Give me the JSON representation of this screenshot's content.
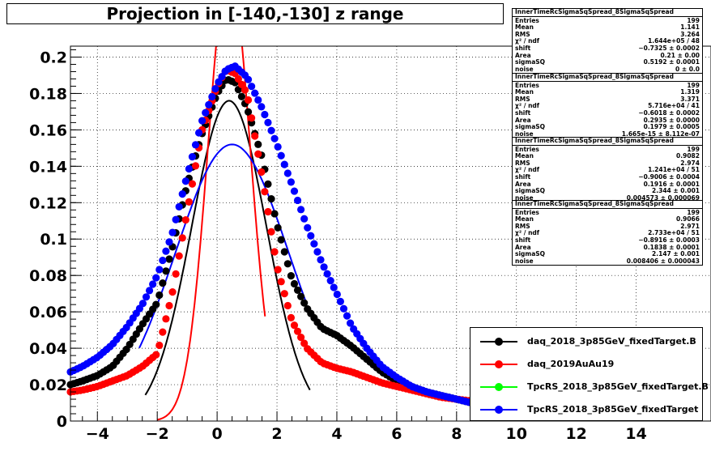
{
  "title": "Projection in [-140,-130] z range",
  "chart_data": {
    "type": "scatter",
    "title": "Projection in [-140,-130] z range",
    "xlabel": "",
    "ylabel": "",
    "xlim": [
      -4.9,
      16.5
    ],
    "ylim": [
      0,
      0.206
    ],
    "x_ticks": [
      -4,
      -2,
      0,
      2,
      4,
      6,
      8,
      10,
      12,
      14
    ],
    "y_ticks": [
      0,
      0.02,
      0.04,
      0.06,
      0.08,
      0.1,
      0.12,
      0.14,
      0.16,
      0.18,
      0.2
    ],
    "y_tick_labels": [
      "0",
      "0.02",
      "0.04",
      "0.06",
      "0.08",
      "0.1",
      "0.12",
      "0.14",
      "0.16",
      "0.18",
      "0.2"
    ],
    "grid": true,
    "legend_position": "bottom-right",
    "series": [
      {
        "name": "daq_2018_3p85GeV_fixedTarget.B",
        "color": "#000000",
        "points": [
          [
            -4.9,
            0.02
          ],
          [
            -4.5,
            0.022
          ],
          [
            -4,
            0.025
          ],
          [
            -3.5,
            0.03
          ],
          [
            -3,
            0.04
          ],
          [
            -2.5,
            0.053
          ],
          [
            -2,
            0.065
          ],
          [
            -1.5,
            0.095
          ],
          [
            -1,
            0.13
          ],
          [
            -0.5,
            0.158
          ],
          [
            0,
            0.18
          ],
          [
            0.3,
            0.188
          ],
          [
            0.6,
            0.186
          ],
          [
            1,
            0.172
          ],
          [
            1.5,
            0.145
          ],
          [
            2,
            0.108
          ],
          [
            2.5,
            0.078
          ],
          [
            3,
            0.062
          ],
          [
            3.5,
            0.051
          ],
          [
            4,
            0.047
          ],
          [
            4.5,
            0.041
          ],
          [
            5,
            0.034
          ],
          [
            5.5,
            0.027
          ],
          [
            6,
            0.022
          ],
          [
            6.5,
            0.019
          ],
          [
            7,
            0.016
          ],
          [
            7.5,
            0.014
          ],
          [
            8,
            0.012
          ],
          [
            8.5,
            0.01
          ],
          [
            9,
            0.008
          ]
        ],
        "fit": {
          "mean": 0.4,
          "amplitude": 0.176,
          "sigma": 1.25,
          "x_range": [
            -2.4,
            3.1
          ]
        }
      },
      {
        "name": "daq_2019AuAu19",
        "color": "#ff0000",
        "points": [
          [
            -4.9,
            0.016
          ],
          [
            -4.5,
            0.017
          ],
          [
            -4,
            0.019
          ],
          [
            -3.5,
            0.022
          ],
          [
            -3,
            0.025
          ],
          [
            -2.5,
            0.03
          ],
          [
            -2,
            0.037
          ],
          [
            -1.5,
            0.07
          ],
          [
            -1,
            0.115
          ],
          [
            -0.5,
            0.16
          ],
          [
            0,
            0.184
          ],
          [
            0.3,
            0.193
          ],
          [
            0.6,
            0.191
          ],
          [
            1,
            0.18
          ],
          [
            1.5,
            0.135
          ],
          [
            2,
            0.085
          ],
          [
            2.5,
            0.055
          ],
          [
            3,
            0.04
          ],
          [
            3.5,
            0.032
          ],
          [
            4,
            0.029
          ],
          [
            4.5,
            0.027
          ],
          [
            5,
            0.024
          ],
          [
            5.5,
            0.021
          ],
          [
            6,
            0.019
          ],
          [
            6.5,
            0.017
          ],
          [
            7,
            0.015
          ],
          [
            7.5,
            0.013
          ],
          [
            8,
            0.012
          ],
          [
            8.5,
            0.011
          ],
          [
            9,
            0.01
          ]
        ],
        "fit": {
          "mean": 0.4,
          "amplitude": 0.25,
          "sigma": 0.7,
          "x_range": [
            -2.0,
            1.6
          ]
        }
      },
      {
        "name": "TpcRS_2018_3p85GeV_fixedTarget.B",
        "color": "#00ff00",
        "points": [],
        "fit": null
      },
      {
        "name": "TpcRS_2018_3p85GeV_fixedTarget",
        "color": "#0000ff",
        "points": [
          [
            -4.9,
            0.027
          ],
          [
            -4.5,
            0.03
          ],
          [
            -4,
            0.035
          ],
          [
            -3.5,
            0.042
          ],
          [
            -3,
            0.052
          ],
          [
            -2.5,
            0.064
          ],
          [
            -2,
            0.08
          ],
          [
            -1.5,
            0.103
          ],
          [
            -1,
            0.135
          ],
          [
            -0.5,
            0.165
          ],
          [
            0,
            0.185
          ],
          [
            0.3,
            0.193
          ],
          [
            0.6,
            0.195
          ],
          [
            1,
            0.189
          ],
          [
            1.5,
            0.172
          ],
          [
            2,
            0.152
          ],
          [
            2.5,
            0.13
          ],
          [
            3,
            0.107
          ],
          [
            3.5,
            0.087
          ],
          [
            4,
            0.07
          ],
          [
            4.5,
            0.052
          ],
          [
            5,
            0.04
          ],
          [
            5.5,
            0.03
          ],
          [
            6,
            0.024
          ],
          [
            6.5,
            0.019
          ],
          [
            7,
            0.016
          ],
          [
            7.5,
            0.014
          ],
          [
            8,
            0.012
          ],
          [
            8.5,
            0.01
          ],
          [
            9,
            0.008
          ]
        ],
        "fit": {
          "mean": 0.5,
          "amplitude": 0.152,
          "sigma": 1.9,
          "x_range": [
            -2.6,
            2.95
          ]
        }
      }
    ]
  },
  "stats_boxes": [
    {
      "header": "InnerTimeRcSigmaSqSpread_8SigmaSqSpread",
      "rows": [
        {
          "label": "Entries",
          "value": "199"
        },
        {
          "label": "Mean",
          "value": "1.141"
        },
        {
          "label": "RMS",
          "value": "3.264"
        },
        {
          "label": "χ² / ndf",
          "value": "1.644e+05 / 48"
        },
        {
          "label": "shift",
          "value": "−0.7325 ± 0.0002"
        },
        {
          "label": "Area",
          "value": "0.21 ± 0.00"
        },
        {
          "label": "sigmaSQ",
          "value": "0.5192 ± 0.0001"
        },
        {
          "label": "noise",
          "value": "0 ± 0.0"
        }
      ]
    },
    {
      "header": "InnerTimeRcSigmaSqSpread_8SigmaSqSpread",
      "rows": [
        {
          "label": "Entries",
          "value": "199"
        },
        {
          "label": "Mean",
          "value": "1.319"
        },
        {
          "label": "RMS",
          "value": "3.371"
        },
        {
          "label": "χ² / ndf",
          "value": "5.716e+04 / 41"
        },
        {
          "label": "shift",
          "value": "−0.6018 ± 0.0002"
        },
        {
          "label": "Area",
          "value": "0.2935 ± 0.0000"
        },
        {
          "label": "sigmaSQ",
          "value": "0.1979 ± 0.0005"
        },
        {
          "label": "noise",
          "value": "1.665e-15 ± 8.112e-07"
        }
      ]
    },
    {
      "header": "InnerTimeRcSigmaSqSpread_8SigmaSqSpread",
      "rows": [
        {
          "label": "Entries",
          "value": "199"
        },
        {
          "label": "Mean",
          "value": "0.9082"
        },
        {
          "label": "RMS",
          "value": "2.974"
        },
        {
          "label": "χ² / ndf",
          "value": "1.241e+04 / 51"
        },
        {
          "label": "shift",
          "value": "−0.9006 ± 0.0004"
        },
        {
          "label": "Area",
          "value": "0.1916 ± 0.0001"
        },
        {
          "label": "sigmaSQ",
          "value": "2.344 ± 0.001"
        },
        {
          "label": "noise",
          "value": "0.004573 ± 0.000069"
        }
      ]
    },
    {
      "header": "InnerTimeRcSigmaSqSpread_8SigmaSqSpread",
      "rows": [
        {
          "label": "Entries",
          "value": "199"
        },
        {
          "label": "Mean",
          "value": "0.9066"
        },
        {
          "label": "RMS",
          "value": "2.971"
        },
        {
          "label": "χ² / ndf",
          "value": "2.733e+04 / 51"
        },
        {
          "label": "shift",
          "value": "−0.8916 ± 0.0003"
        },
        {
          "label": "Area",
          "value": "0.1838 ± 0.0001"
        },
        {
          "label": "sigmaSQ",
          "value": "2.147 ± 0.001"
        },
        {
          "label": "noise",
          "value": "0.008406 ± 0.000043"
        }
      ]
    }
  ]
}
